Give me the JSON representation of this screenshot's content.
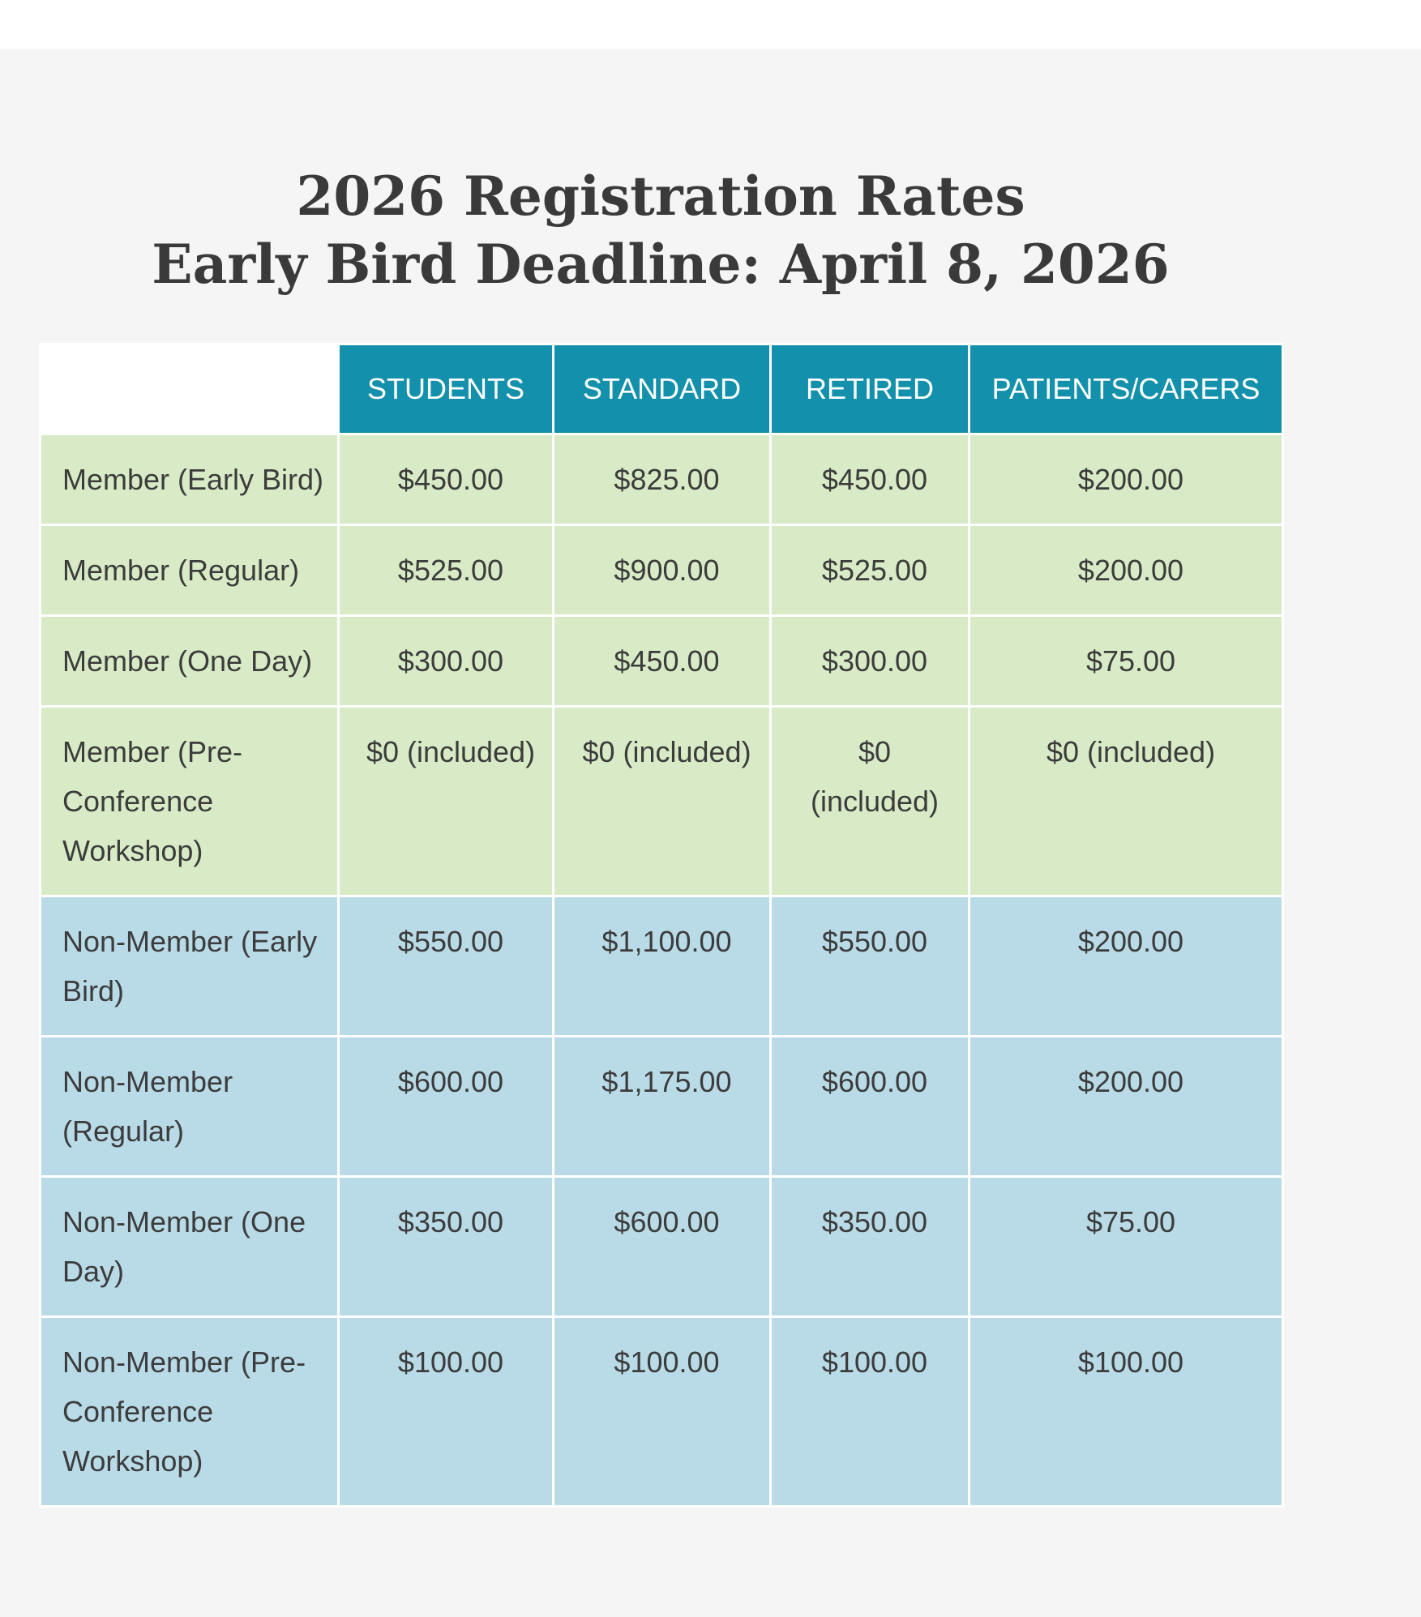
{
  "header": {
    "title_line1": "2026 Registration Rates",
    "title_line2": "Early Bird Deadline: April 8, 2026"
  },
  "table": {
    "columns": [
      "STUDENTS",
      "STANDARD",
      "RETIRED",
      "PATIENTS/CARERS"
    ],
    "rows": [
      {
        "label": "Member (Early Bird)",
        "group": "member",
        "values": [
          "$450.00",
          "$825.00",
          "$450.00",
          "$200.00"
        ]
      },
      {
        "label": "Member (Regular)",
        "group": "member",
        "values": [
          "$525.00",
          "$900.00",
          "$525.00",
          "$200.00"
        ]
      },
      {
        "label": "Member (One Day)",
        "group": "member",
        "values": [
          "$300.00",
          "$450.00",
          "$300.00",
          "$75.00"
        ]
      },
      {
        "label": "Member (Pre-Conference Workshop)",
        "group": "member",
        "values": [
          "$0 (included)",
          "$0 (included)",
          "$0 (included)",
          "$0 (included)"
        ]
      },
      {
        "label": "Non-Member (Early Bird)",
        "group": "nonmember",
        "values": [
          "$550.00",
          "$1,100.00",
          "$550.00",
          "$200.00"
        ]
      },
      {
        "label": "Non-Member (Regular)",
        "group": "nonmember",
        "values": [
          "$600.00",
          "$1,175.00",
          "$600.00",
          "$200.00"
        ]
      },
      {
        "label": "Non-Member (One Day)",
        "group": "nonmember",
        "values": [
          "$350.00",
          "$600.00",
          "$350.00",
          "$75.00"
        ]
      },
      {
        "label": "Non-Member (Pre-Conference Workshop)",
        "group": "nonmember",
        "values": [
          "$100.00",
          "$100.00",
          "$100.00",
          "$100.00"
        ]
      }
    ]
  },
  "colors": {
    "header_bg": "#1390ac",
    "member_row_bg": "#d9ebc6",
    "nonmember_row_bg": "#b9dbe7",
    "page_bg": "#f5f5f5"
  }
}
